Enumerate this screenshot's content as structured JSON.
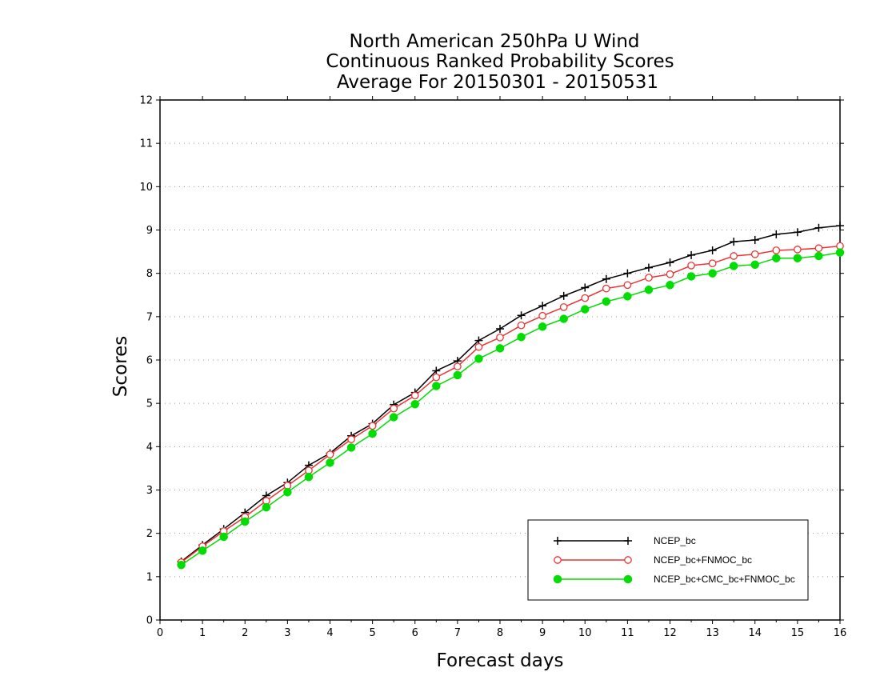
{
  "chart_data": {
    "type": "line",
    "title_lines": [
      "North American 250hPa U Wind",
      "Continuous Ranked Probability Scores",
      "Average For 20150301 - 20150531"
    ],
    "xlabel": "Forecast days",
    "ylabel": "Scores",
    "xlim": [
      0,
      16
    ],
    "ylim": [
      0,
      12
    ],
    "x_ticks": [
      "0",
      "1",
      "2",
      "3",
      "4",
      "5",
      "6",
      "7",
      "8",
      "9",
      "10",
      "11",
      "12",
      "13",
      "14",
      "15",
      "16"
    ],
    "y_ticks": [
      "0",
      "1",
      "2",
      "3",
      "4",
      "5",
      "6",
      "7",
      "8",
      "9",
      "10",
      "11",
      "12"
    ],
    "grid": "horizontal dotted",
    "legend_position": "bottom-right",
    "x": [
      0.5,
      1,
      1.5,
      2,
      2.5,
      3,
      3.5,
      4,
      4.5,
      5,
      5.5,
      6,
      6.5,
      7,
      7.5,
      8,
      8.5,
      9,
      9.5,
      10,
      10.5,
      11,
      11.5,
      12,
      12.5,
      13,
      13.5,
      14,
      14.5,
      15,
      15.5,
      16
    ],
    "series": [
      {
        "name": "NCEP_bc",
        "color": "#000000",
        "marker": "plus",
        "values": [
          1.35,
          1.73,
          2.1,
          2.48,
          2.87,
          3.17,
          3.57,
          3.85,
          4.25,
          4.53,
          4.97,
          5.25,
          5.75,
          5.98,
          6.45,
          6.72,
          7.03,
          7.25,
          7.48,
          7.67,
          7.87,
          8.0,
          8.13,
          8.25,
          8.42,
          8.53,
          8.73,
          8.77,
          8.9,
          8.95,
          9.05,
          9.1
        ]
      },
      {
        "name": "NCEP_bc+FNMOC_bc",
        "color": "#ee3333",
        "marker": "open-circle",
        "values": [
          1.33,
          1.7,
          2.05,
          2.38,
          2.75,
          3.1,
          3.45,
          3.82,
          4.17,
          4.48,
          4.88,
          5.18,
          5.6,
          5.85,
          6.3,
          6.52,
          6.8,
          7.02,
          7.22,
          7.43,
          7.65,
          7.73,
          7.9,
          7.98,
          8.18,
          8.23,
          8.4,
          8.44,
          8.53,
          8.55,
          8.58,
          8.63
        ]
      },
      {
        "name": "NCEP_bc+CMC_bc+FNMOC_bc",
        "color": "#00dd00",
        "marker": "filled-circle",
        "values": [
          1.27,
          1.6,
          1.92,
          2.27,
          2.6,
          2.95,
          3.3,
          3.63,
          3.98,
          4.3,
          4.68,
          4.98,
          5.4,
          5.65,
          6.03,
          6.27,
          6.53,
          6.77,
          6.95,
          7.17,
          7.35,
          7.47,
          7.62,
          7.73,
          7.93,
          8.0,
          8.17,
          8.2,
          8.35,
          8.35,
          8.4,
          8.48
        ]
      }
    ]
  }
}
